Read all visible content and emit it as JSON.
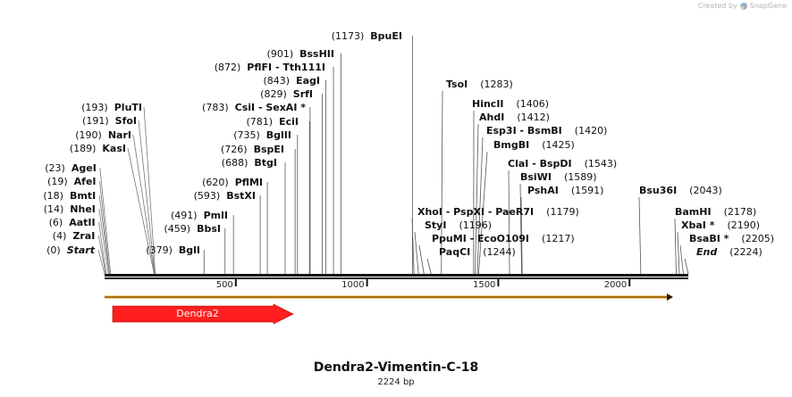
{
  "watermark": {
    "prefix": "Created by",
    "brand": "SnapGene"
  },
  "map": {
    "title": "Dendra2-Vimentin-C-18",
    "length_label": "2224 bp",
    "length": 2224,
    "ticks": [
      "500",
      "1000",
      "1500",
      "2000"
    ],
    "feature": {
      "name": "Dendra2",
      "color": "#ff1f1f"
    },
    "left_sites": [
      {
        "pos": "(0)",
        "name": "Start",
        "italic": true
      },
      {
        "pos": "(4)",
        "name": "ZraI"
      },
      {
        "pos": "(6)",
        "name": "AatII"
      },
      {
        "pos": "(14)",
        "name": "NheI"
      },
      {
        "pos": "(18)",
        "name": "BmtI"
      },
      {
        "pos": "(19)",
        "name": "AfeI"
      },
      {
        "pos": "(23)",
        "name": "AgeI"
      },
      {
        "pos": "(189)",
        "name": "KasI"
      },
      {
        "pos": "(190)",
        "name": "NarI"
      },
      {
        "pos": "(191)",
        "name": "SfoI"
      },
      {
        "pos": "(193)",
        "name": "PluTI"
      }
    ],
    "mid_sites": [
      {
        "pos": "(379)",
        "name": "BglI"
      },
      {
        "pos": "(459)",
        "name": "BbsI"
      },
      {
        "pos": "(491)",
        "name": "PmlI"
      },
      {
        "pos": "(593)",
        "name": "BstXI"
      },
      {
        "pos": "(620)",
        "name": "PflMI"
      },
      {
        "pos": "(688)",
        "name": "BtgI"
      },
      {
        "pos": "(726)",
        "name": "BspEI"
      },
      {
        "pos": "(735)",
        "name": "BglII"
      },
      {
        "pos": "(781)",
        "name": "EciI"
      },
      {
        "pos": "(783)",
        "name": "CsiI  -  SexAI *"
      },
      {
        "pos": "(829)",
        "name": "SrfI"
      },
      {
        "pos": "(843)",
        "name": "EagI"
      },
      {
        "pos": "(872)",
        "name": "PflFI  -  Tth111I"
      },
      {
        "pos": "(901)",
        "name": "BssHII"
      },
      {
        "pos": "(1173)",
        "name": "BpuEI"
      }
    ],
    "right_sites": [
      {
        "name": "TsoI",
        "pos": "(1283)"
      },
      {
        "name": "HincII",
        "pos": "(1406)"
      },
      {
        "name": "AhdI",
        "pos": "(1412)"
      },
      {
        "name": "Esp3I  -  BsmBI",
        "pos": "(1420)"
      },
      {
        "name": "BmgBI",
        "pos": "(1425)"
      },
      {
        "name": "ClaI  -  BspDI",
        "pos": "(1543)"
      },
      {
        "name": "BsiWI",
        "pos": "(1589)"
      },
      {
        "name": "PshAI",
        "pos": "(1591)"
      },
      {
        "name": "XhoI  -  PspXI  -  PaeR7I",
        "pos": "(1179)"
      },
      {
        "name": "StyI",
        "pos": "(1196)"
      },
      {
        "name": "PpuMI  -  EcoO109I",
        "pos": "(1217)"
      },
      {
        "name": "PaqCI",
        "pos": "(1244)"
      },
      {
        "name": "Bsu36I",
        "pos": "(2043)"
      },
      {
        "name": "BamHI",
        "pos": "(2178)"
      },
      {
        "name": "XbaI *",
        "pos": "(2190)"
      },
      {
        "name": "BsaBI *",
        "pos": "(2205)"
      },
      {
        "name": "End",
        "pos": "(2224)",
        "italic": true
      }
    ]
  }
}
